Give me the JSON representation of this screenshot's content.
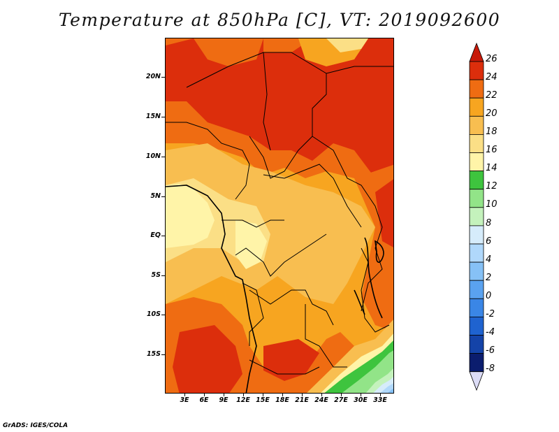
{
  "title": "Temperature at 850hPa [C], VT: 2019092600",
  "credit": "GrADS: IGES/COLA",
  "map": {
    "lat_labels": [
      "20N",
      "15N",
      "10N",
      "5N",
      "EQ",
      "5S",
      "10S",
      "15S"
    ],
    "lon_labels": [
      "3E",
      "6E",
      "9E",
      "12E",
      "15E",
      "18E",
      "21E",
      "24E",
      "27E",
      "30E",
      "33E"
    ]
  },
  "colorbar": {
    "labels": [
      "26",
      "24",
      "22",
      "20",
      "18",
      "16",
      "14",
      "12",
      "10",
      "8",
      "6",
      "4",
      "2",
      "0",
      "-2",
      "-4",
      "-6",
      "-8"
    ],
    "colors": {
      "below_-8": "#dcdcf6",
      "-8_-6": "#0b1d6e",
      "-6_-4": "#1443a8",
      "-4_-2": "#1f63d0",
      "-2_0": "#3a86e6",
      "0_2": "#5aa2f0",
      "2_4": "#86c1f6",
      "4_6": "#b0d8fb",
      "6_8": "#d6ecfb",
      "8_10": "#c4f2bc",
      "10_12": "#92e488",
      "12_14": "#3ec43e",
      "14_16": "#fff4a8",
      "16_18": "#fbdf86",
      "18_20": "#f8be50",
      "20_22": "#f7a520",
      "22_24": "#ef6c12",
      "24_26": "#dc2e0c",
      "above_26": "#c81a0a"
    }
  }
}
